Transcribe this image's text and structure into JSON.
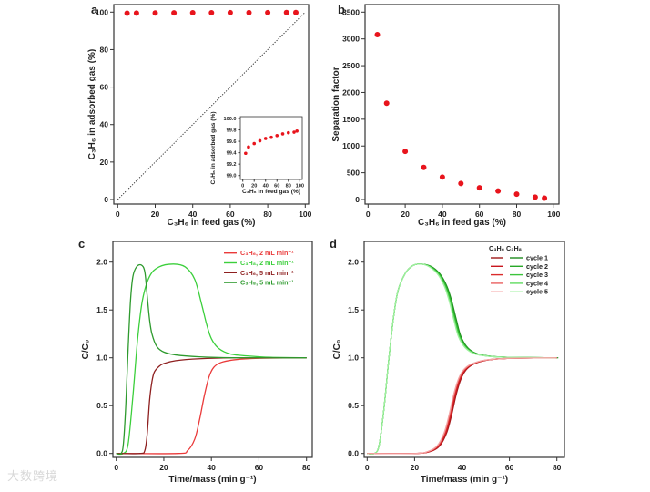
{
  "watermark": "大数跨境",
  "chart_data": [
    {
      "panel": "a",
      "type": "scatter",
      "xlabel": "C₃H₆ in feed gas (%)",
      "ylabel": "C₃H₆ in adsorbed gas (%)",
      "xlim": [
        0,
        100
      ],
      "ylim": [
        0,
        100
      ],
      "xticks": [
        0,
        20,
        40,
        60,
        80,
        100
      ],
      "yticks": [
        0,
        20,
        40,
        60,
        80,
        100
      ],
      "reference_line": {
        "style": "dotted",
        "from": [
          0,
          0
        ],
        "to": [
          100,
          100
        ]
      },
      "color": "#e8141c",
      "x": [
        5,
        10,
        20,
        30,
        40,
        50,
        60,
        70,
        80,
        90,
        95
      ],
      "y": [
        99.39,
        99.5,
        99.56,
        99.61,
        99.65,
        99.67,
        99.7,
        99.73,
        99.75,
        99.76,
        99.78
      ],
      "inset": {
        "xlabel": "C₃H₆ in feed gas (%)",
        "ylabel": "C₃H₆ in adsorbed gas (%)",
        "xlim": [
          0,
          100
        ],
        "ylim": [
          99.0,
          100.0
        ],
        "xticks": [
          "0",
          "20",
          "40",
          "60",
          "80",
          "100"
        ],
        "yticks": [
          "99.0",
          "99.2",
          "99.4",
          "99.6",
          "99.8",
          "100.0"
        ]
      }
    },
    {
      "panel": "b",
      "type": "scatter",
      "xlabel": "C₃H₆ in feed gas (%)",
      "ylabel": "Separation factor",
      "xlim": [
        0,
        100
      ],
      "ylim": [
        0,
        3500
      ],
      "xticks": [
        0,
        20,
        40,
        60,
        80,
        100
      ],
      "yticks": [
        0,
        500,
        1000,
        1500,
        2000,
        2500,
        3000,
        3500
      ],
      "color": "#e8141c",
      "x": [
        5,
        10,
        20,
        30,
        40,
        50,
        60,
        70,
        80,
        90,
        95
      ],
      "y": [
        3080,
        1800,
        900,
        600,
        420,
        300,
        220,
        160,
        100,
        45,
        25
      ]
    },
    {
      "panel": "c",
      "type": "line",
      "xlabel": "Time/mass (min g⁻¹)",
      "ylabel": "C/C₀",
      "xlim": [
        0,
        80
      ],
      "ylim": [
        0,
        2.1
      ],
      "xticks": [
        0,
        20,
        40,
        60,
        80
      ],
      "yticks": [
        "0.0",
        "0.5",
        "1.0",
        "1.5",
        "2.0"
      ],
      "legend_position": "top-right",
      "series": [
        {
          "name": "C₃H₆, 2 mL min⁻¹",
          "color": "#ea3a3a",
          "points": [
            [
              0,
              0
            ],
            [
              26,
              0
            ],
            [
              30,
              0.03
            ],
            [
              33,
              0.15
            ],
            [
              35,
              0.35
            ],
            [
              37,
              0.6
            ],
            [
              39,
              0.8
            ],
            [
              41,
              0.9
            ],
            [
              44,
              0.95
            ],
            [
              50,
              0.98
            ],
            [
              60,
              0.995
            ],
            [
              80,
              1.0
            ]
          ]
        },
        {
          "name": "C₃H₈, 2 mL min⁻¹",
          "color": "#3ccf3c",
          "points": [
            [
              0,
              0
            ],
            [
              3,
              0
            ],
            [
              5,
              0.1
            ],
            [
              7,
              0.6
            ],
            [
              9,
              1.2
            ],
            [
              11,
              1.6
            ],
            [
              14,
              1.85
            ],
            [
              18,
              1.95
            ],
            [
              24,
              1.98
            ],
            [
              29,
              1.95
            ],
            [
              33,
              1.82
            ],
            [
              36,
              1.55
            ],
            [
              38,
              1.35
            ],
            [
              40,
              1.2
            ],
            [
              43,
              1.1
            ],
            [
              48,
              1.04
            ],
            [
              55,
              1.02
            ],
            [
              65,
              1.005
            ],
            [
              80,
              1.0
            ]
          ]
        },
        {
          "name": "C₃H₆, 5 mL min⁻¹",
          "color": "#8e1f1f",
          "points": [
            [
              0,
              0
            ],
            [
              10,
              0
            ],
            [
              12,
              0.03
            ],
            [
              13,
              0.2
            ],
            [
              14,
              0.55
            ],
            [
              15,
              0.75
            ],
            [
              16,
              0.85
            ],
            [
              18,
              0.91
            ],
            [
              20,
              0.94
            ],
            [
              25,
              0.97
            ],
            [
              35,
              0.99
            ],
            [
              50,
              1.0
            ],
            [
              80,
              1.0
            ]
          ]
        },
        {
          "name": "C₃H₈, 5 mL min⁻¹",
          "color": "#2e9a2e",
          "points": [
            [
              0,
              0
            ],
            [
              2,
              0
            ],
            [
              3,
              0.1
            ],
            [
              4,
              0.5
            ],
            [
              5,
              1.1
            ],
            [
              6,
              1.6
            ],
            [
              7,
              1.85
            ],
            [
              8.5,
              1.95
            ],
            [
              10.5,
              1.97
            ],
            [
              12,
              1.9
            ],
            [
              13,
              1.65
            ],
            [
              14,
              1.4
            ],
            [
              15,
              1.25
            ],
            [
              17,
              1.12
            ],
            [
              20,
              1.06
            ],
            [
              25,
              1.03
            ],
            [
              35,
              1.01
            ],
            [
              50,
              1.0
            ],
            [
              80,
              1.0
            ]
          ]
        }
      ]
    },
    {
      "panel": "d",
      "type": "line",
      "xlabel": "Time/mass (min g⁻¹)",
      "ylabel": "C/C₀",
      "xlim": [
        0,
        80
      ],
      "ylim": [
        0,
        2.1
      ],
      "xticks": [
        0,
        20,
        40,
        60,
        80
      ],
      "yticks": [
        "0.0",
        "0.5",
        "1.0",
        "1.5",
        "2.0"
      ],
      "legend_position": "top-right",
      "legend_header": "C₃H₆ C₃H₈",
      "c3h6_curve": [
        [
          0,
          0
        ],
        [
          20,
          0
        ],
        [
          26,
          0.02
        ],
        [
          30,
          0.08
        ],
        [
          33,
          0.22
        ],
        [
          35,
          0.4
        ],
        [
          37,
          0.62
        ],
        [
          39,
          0.78
        ],
        [
          41,
          0.87
        ],
        [
          44,
          0.93
        ],
        [
          50,
          0.975
        ],
        [
          60,
          0.995
        ],
        [
          80,
          1.0
        ]
      ],
      "c3h8_curve": [
        [
          0,
          0
        ],
        [
          3,
          0
        ],
        [
          5,
          0.08
        ],
        [
          7,
          0.45
        ],
        [
          9,
          0.95
        ],
        [
          11,
          1.4
        ],
        [
          13,
          1.7
        ],
        [
          16,
          1.88
        ],
        [
          19,
          1.96
        ],
        [
          22,
          1.98
        ],
        [
          26,
          1.96
        ],
        [
          30,
          1.88
        ],
        [
          33,
          1.75
        ],
        [
          35,
          1.6
        ],
        [
          37,
          1.4
        ],
        [
          39,
          1.22
        ],
        [
          42,
          1.1
        ],
        [
          46,
          1.04
        ],
        [
          52,
          1.015
        ],
        [
          60,
          1.005
        ],
        [
          80,
          1.0
        ]
      ],
      "cycles": [
        {
          "name": "cycle 1",
          "c3h6_color": "#9e1a1a",
          "c3h8_color": "#1e8c1e",
          "x_shift": 0.6
        },
        {
          "name": "cycle 2",
          "c3h6_color": "#c8161e",
          "c3h8_color": "#28a828",
          "x_shift": 0.3
        },
        {
          "name": "cycle 3",
          "c3h6_color": "#da2c2c",
          "c3h8_color": "#3cc43c",
          "x_shift": 0.0
        },
        {
          "name": "cycle 4",
          "c3h6_color": "#ea6262",
          "c3h8_color": "#60dc60",
          "x_shift": -0.3
        },
        {
          "name": "cycle 5",
          "c3h6_color": "#f4a4a4",
          "c3h8_color": "#a0f0a0",
          "x_shift": -0.5
        }
      ]
    }
  ],
  "panel_labels": [
    "a",
    "b",
    "c",
    "d"
  ]
}
